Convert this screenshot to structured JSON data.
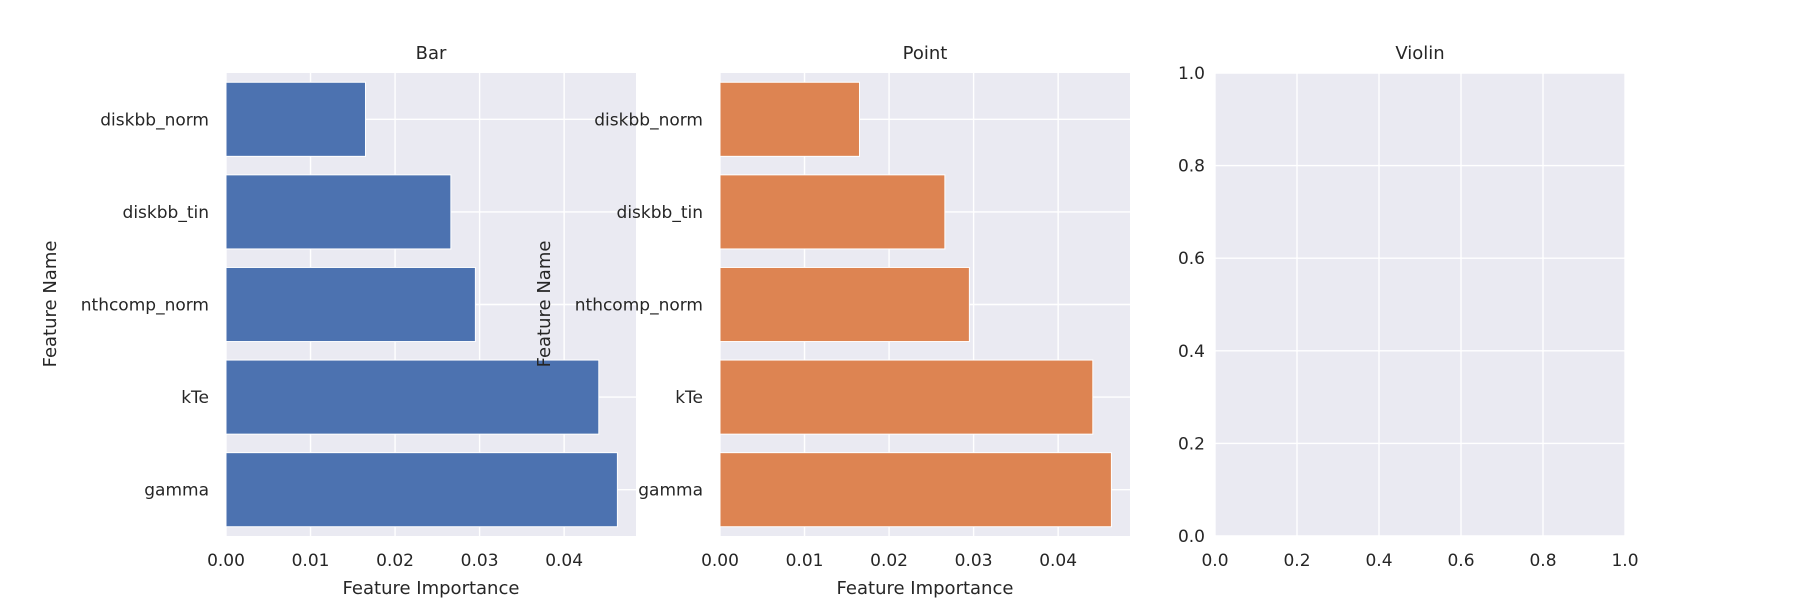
{
  "chart_data": [
    {
      "type": "bar",
      "orientation": "horizontal",
      "title": "Bar",
      "xlabel": "Feature Importance",
      "ylabel": "Feature Name",
      "categories": [
        "diskbb_norm",
        "diskbb_tin",
        "nthcomp_norm",
        "kTe",
        "gamma"
      ],
      "values": [
        0.0165,
        0.0266,
        0.0295,
        0.0441,
        0.0463
      ],
      "xlim": [
        0,
        0.0485
      ],
      "xticks": [
        "0.00",
        "0.01",
        "0.02",
        "0.03",
        "0.04"
      ],
      "color": "#4c72b0",
      "grid": true
    },
    {
      "type": "bar",
      "orientation": "horizontal",
      "title": "Point",
      "xlabel": "Feature Importance",
      "ylabel": "Feature Name",
      "categories": [
        "diskbb_norm",
        "diskbb_tin",
        "nthcomp_norm",
        "kTe",
        "gamma"
      ],
      "values": [
        0.0165,
        0.0266,
        0.0295,
        0.0441,
        0.0463
      ],
      "xlim": [
        0,
        0.0485
      ],
      "xticks": [
        "0.00",
        "0.01",
        "0.02",
        "0.03",
        "0.04"
      ],
      "color": "#dd8452",
      "grid": true
    },
    {
      "type": "scatter",
      "title": "Violin",
      "xlabel": "",
      "ylabel": "",
      "x": [],
      "y": [],
      "xlim": [
        0,
        1
      ],
      "ylim": [
        0,
        1
      ],
      "xticks": [
        "0.0",
        "0.2",
        "0.4",
        "0.6",
        "0.8",
        "1.0"
      ],
      "yticks": [
        "0.0",
        "0.2",
        "0.4",
        "0.6",
        "0.8",
        "1.0"
      ],
      "grid": true
    }
  ],
  "colors": {
    "axes_background": "#eaeaf2",
    "grid": "#ffffff",
    "text": "#262626"
  }
}
